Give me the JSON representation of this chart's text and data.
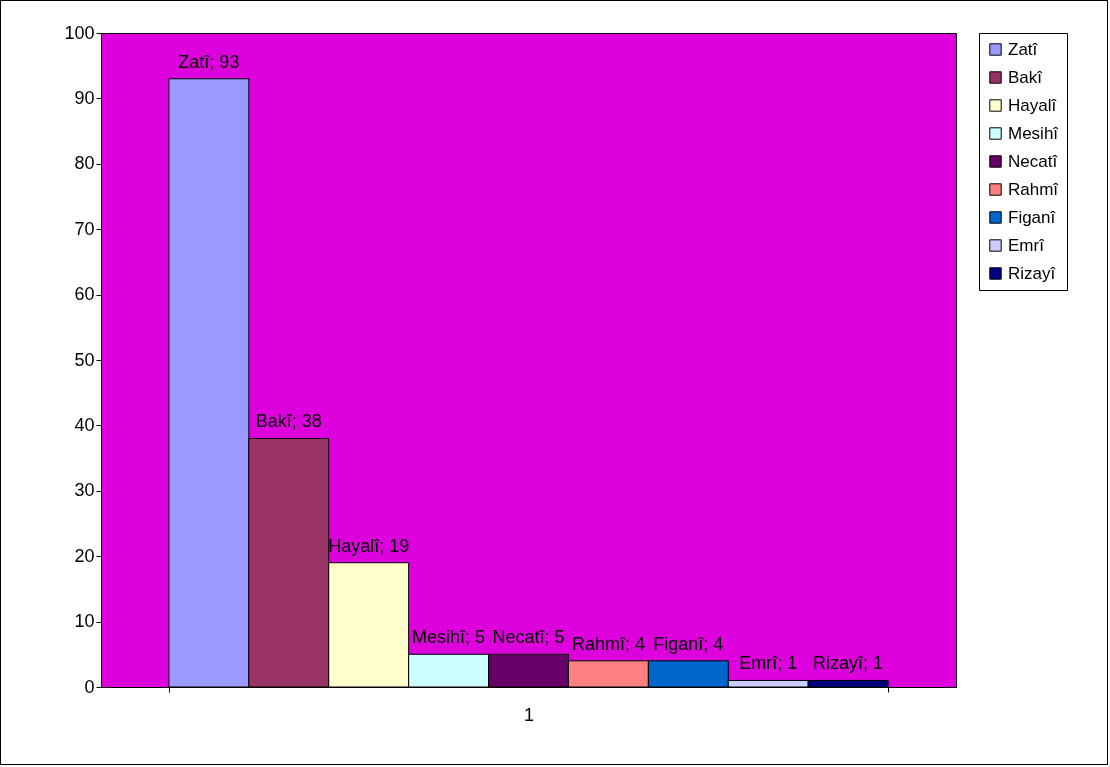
{
  "chart_data": {
    "type": "bar",
    "categories": [
      "1"
    ],
    "ylim": [
      0,
      100
    ],
    "yticks": [
      0,
      10,
      20,
      30,
      40,
      50,
      60,
      70,
      80,
      90,
      100
    ],
    "grid": false,
    "legend": "right",
    "series": [
      {
        "name": "Zatî",
        "color": "#9999ff",
        "values": [
          93
        ],
        "value_labels": [
          "Zatî; 93"
        ]
      },
      {
        "name": "Bakî",
        "color": "#993366",
        "values": [
          38
        ],
        "value_labels": [
          "Bakî; 38"
        ]
      },
      {
        "name": "Hayalî",
        "color": "#ffffcc",
        "values": [
          19
        ],
        "value_labels": [
          "Hayalî; 19"
        ]
      },
      {
        "name": "Mesihî",
        "color": "#ccffff",
        "values": [
          5
        ],
        "value_labels": [
          "Mesihî; 5"
        ]
      },
      {
        "name": "Necatî",
        "color": "#660066",
        "values": [
          5
        ],
        "value_labels": [
          "Necatî; 5"
        ]
      },
      {
        "name": "Rahmî",
        "color": "#ff8080",
        "values": [
          4
        ],
        "value_labels": [
          "Rahmî; 4"
        ]
      },
      {
        "name": "Figanî",
        "color": "#0066cc",
        "values": [
          4
        ],
        "value_labels": [
          "Figanî; 4"
        ]
      },
      {
        "name": "Emrî",
        "color": "#ccccff",
        "values": [
          1
        ],
        "value_labels": [
          "Emrî; 1"
        ]
      },
      {
        "name": "Rizayî",
        "color": "#000080",
        "values": [
          1
        ],
        "value_labels": [
          "Rizayî; 1"
        ]
      }
    ]
  }
}
